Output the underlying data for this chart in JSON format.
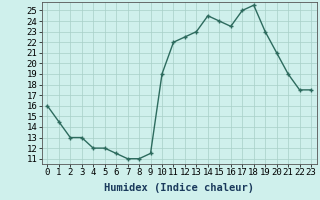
{
  "x": [
    0,
    1,
    2,
    3,
    4,
    5,
    6,
    7,
    8,
    9,
    10,
    11,
    12,
    13,
    14,
    15,
    16,
    17,
    18,
    19,
    20,
    21,
    22,
    23
  ],
  "y": [
    16,
    14.5,
    13,
    13,
    12,
    12,
    11.5,
    11,
    11,
    11.5,
    19,
    22,
    22.5,
    23,
    24.5,
    24,
    23.5,
    25,
    25.5,
    23,
    21,
    19,
    17.5,
    17.5
  ],
  "line_color": "#2d6b5e",
  "marker": "+",
  "bg_color": "#cff0ec",
  "grid_color": "#a8cfc8",
  "xlabel": "Humidex (Indice chaleur)",
  "xlim": [
    -0.5,
    23.5
  ],
  "ylim": [
    10.5,
    25.8
  ],
  "yticks": [
    11,
    12,
    13,
    14,
    15,
    16,
    17,
    18,
    19,
    20,
    21,
    22,
    23,
    24,
    25
  ],
  "xtick_labels": [
    "0",
    "1",
    "2",
    "3",
    "4",
    "5",
    "6",
    "7",
    "8",
    "9",
    "10",
    "11",
    "12",
    "13",
    "14",
    "15",
    "16",
    "17",
    "18",
    "19",
    "20",
    "21",
    "22",
    "23"
  ],
  "xlabel_fontsize": 7.5,
  "tick_fontsize": 6.5,
  "line_width": 1.0,
  "marker_size": 3.5,
  "marker_edge_width": 1.0
}
